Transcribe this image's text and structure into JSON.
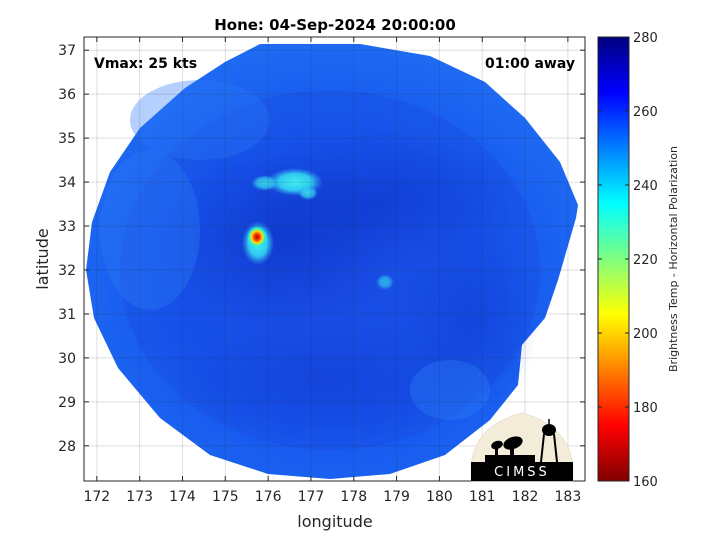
{
  "figure": {
    "title": "Hone: 04-Sep-2024 20:00:00",
    "xlabel": "longitude",
    "ylabel": "latitude",
    "vmax_label": "Vmax: 25 kts",
    "time_label": "01:00 away",
    "x_ticks": [
      "172",
      "173",
      "174",
      "175",
      "176",
      "177",
      "178",
      "179",
      "180",
      "181",
      "182",
      "183"
    ],
    "y_ticks": [
      "28",
      "29",
      "30",
      "31",
      "32",
      "33",
      "34",
      "35",
      "36",
      "37"
    ],
    "x_range": [
      171.7,
      183.4
    ],
    "y_range": [
      27.2,
      37.3
    ],
    "grid": true
  },
  "colorbar": {
    "label": "Brightness Temp - Horizontal Polarization",
    "ticks": [
      "160",
      "180",
      "200",
      "220",
      "240",
      "260",
      "280"
    ],
    "range": [
      160,
      280
    ],
    "colormap": "jet",
    "colors": [
      "#7f0000",
      "#ff0000",
      "#ffff00",
      "#00ffff",
      "#0000ff",
      "#00007f"
    ]
  },
  "logo": {
    "text": "CIMSS"
  }
}
